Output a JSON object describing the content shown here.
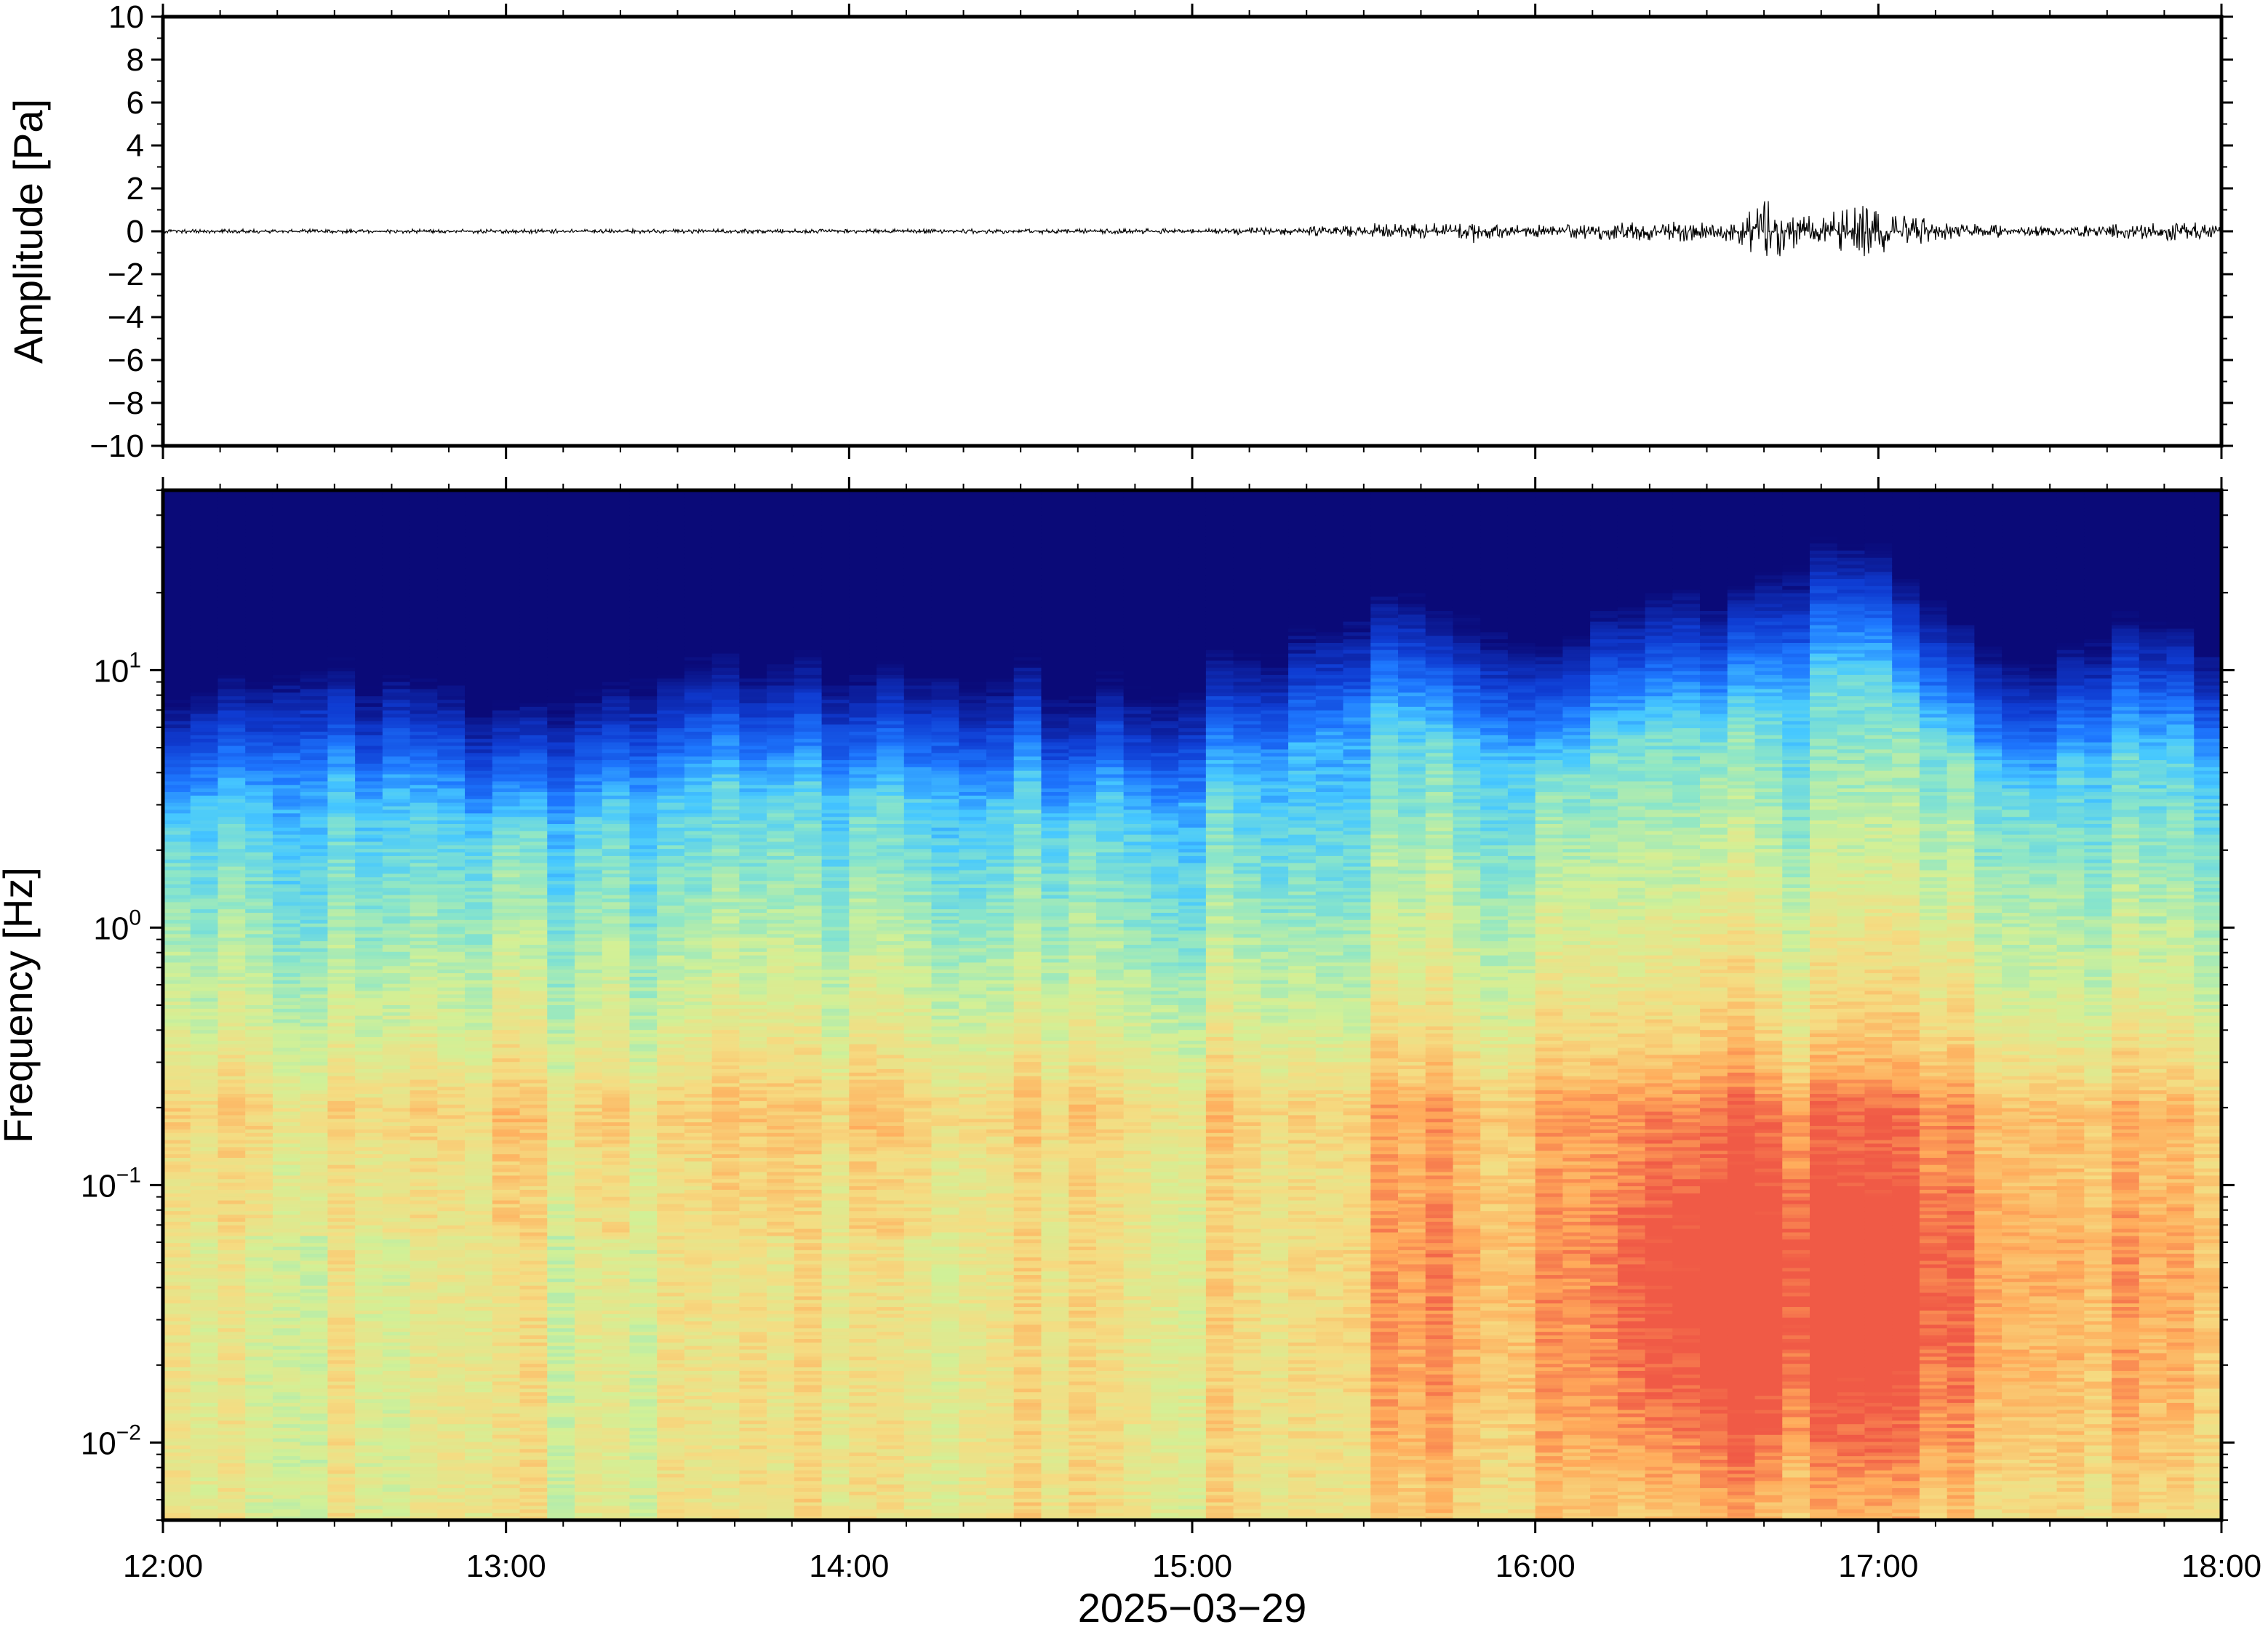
{
  "chart_data": [
    {
      "type": "line",
      "panel": "waveform",
      "ylabel": "Amplitude [Pa]",
      "ylim": [
        -10,
        10
      ],
      "yticks": [
        10,
        8,
        6,
        4,
        2,
        0,
        -2,
        -4,
        -6,
        -8,
        -10
      ],
      "ytick_labels": [
        "10",
        "8",
        "6",
        "4",
        "2",
        "0",
        "−2",
        "−4",
        "−6",
        "−8",
        "−10"
      ],
      "x_range_hours": [
        12,
        18
      ],
      "envelope": {
        "time_hours": [
          12.0,
          13.0,
          14.0,
          15.0,
          15.3,
          15.5,
          15.7,
          16.0,
          16.2,
          16.5,
          16.6,
          16.65,
          16.8,
          16.9,
          16.95,
          17.05,
          17.2,
          17.5,
          17.8,
          17.9,
          18.0
        ],
        "max_abs_pa": [
          0.1,
          0.1,
          0.1,
          0.12,
          0.2,
          0.3,
          0.4,
          0.3,
          0.4,
          0.5,
          0.6,
          1.6,
          0.8,
          1.0,
          1.2,
          0.9,
          0.4,
          0.2,
          0.4,
          0.5,
          0.2
        ]
      }
    },
    {
      "type": "heatmap",
      "panel": "spectrogram",
      "ylabel": "Frequency [Hz]",
      "yscale": "log",
      "ylim": [
        0.005,
        50
      ],
      "yticks": [
        10,
        1,
        0.1,
        0.01
      ],
      "ytick_labels": [
        {
          "base": "10",
          "exp": "1"
        },
        {
          "base": "10",
          "exp": "0"
        },
        {
          "base": "10",
          "exp": "−1"
        },
        {
          "base": "10",
          "exp": "−2"
        }
      ],
      "xlabel": "2025−03−29",
      "xticks": [
        "12:00",
        "13:00",
        "14:00",
        "15:00",
        "16:00",
        "17:00",
        "18:00"
      ],
      "colormap": [
        "#0a0a78",
        "#0f3cd2",
        "#1e78ff",
        "#46c8ff",
        "#8ce6c8",
        "#d2f096",
        "#f5dc82",
        "#ffaa5a",
        "#f05a46"
      ],
      "time_hours": [
        12.0,
        12.5,
        13.0,
        13.5,
        14.0,
        14.5,
        14.65,
        15.0,
        15.3,
        15.6,
        16.0,
        16.25,
        16.6,
        16.7,
        16.95,
        17.2,
        17.5,
        17.8,
        18.0
      ],
      "max_freq_hz": [
        9,
        12,
        8,
        12,
        11,
        12,
        9,
        11,
        16,
        22,
        13,
        18,
        20,
        28,
        33,
        14,
        12,
        20,
        15
      ],
      "bands_hz": [
        {
          "range": [
            0.15,
            0.25
          ],
          "relative_power": "high"
        },
        {
          "range": [
            0.04,
            0.12
          ],
          "relative_power": "high after 15:30, peak 16:40–17:10"
        },
        {
          "range": [
            0.005,
            0.03
          ],
          "relative_power": "high after 16:15"
        }
      ]
    }
  ]
}
